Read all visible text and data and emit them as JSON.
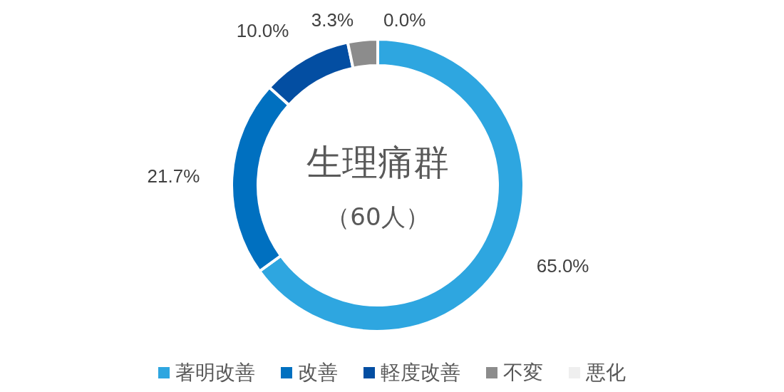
{
  "chart_data": {
    "type": "donut",
    "title": "生理痛群",
    "subtitle": "（60人）",
    "categories": [
      "著明改善",
      "改善",
      "軽度改善",
      "不変",
      "悪化"
    ],
    "values": [
      65.0,
      21.7,
      10.0,
      3.3,
      0.0
    ],
    "colors": [
      "#2ea6e0",
      "#0070c0",
      "#034ea2",
      "#8c8c8c",
      "#efefef"
    ],
    "value_labels": [
      "65.0%",
      "21.7%",
      "10.0%",
      "3.3%",
      "0.0%"
    ],
    "legend": "bottom"
  }
}
